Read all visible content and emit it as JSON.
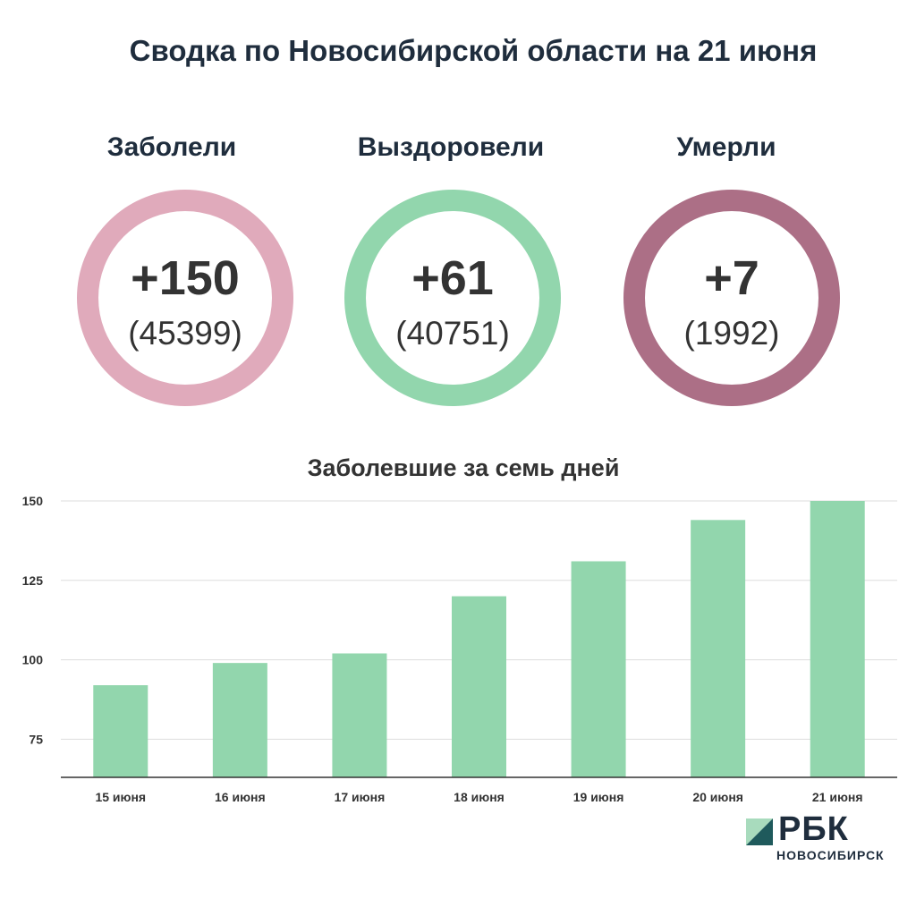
{
  "header": {
    "title": "Сводка по Новосибирской области на 21 июня"
  },
  "stats": [
    {
      "label": "Заболели",
      "delta": "+150",
      "total": "(45399)",
      "color": "#e0aabb"
    },
    {
      "label": "Выздоровели",
      "delta": "+61",
      "total": "(40751)",
      "color": "#92d6ad"
    },
    {
      "label": "Умерли",
      "delta": "+7",
      "total": "(1992)",
      "color": "#ac6f86"
    }
  ],
  "chart_data": {
    "type": "bar",
    "title": "Заболевшие за семь дней",
    "categories": [
      "15 июня",
      "16 июня",
      "17 июня",
      "18 июня",
      "19 июня",
      "20 июня",
      "21 июня"
    ],
    "values": [
      92,
      99,
      102,
      120,
      131,
      144,
      150
    ],
    "ylim": [
      63,
      150
    ],
    "yticks": [
      75,
      100,
      125,
      150
    ],
    "grid": true,
    "bar_color": "#92d6ad"
  },
  "logo": {
    "name": "РБК",
    "subtitle": "НОВОСИБИРСК",
    "mark_colors": [
      "#a8dbbd",
      "#1f5a5c"
    ]
  }
}
